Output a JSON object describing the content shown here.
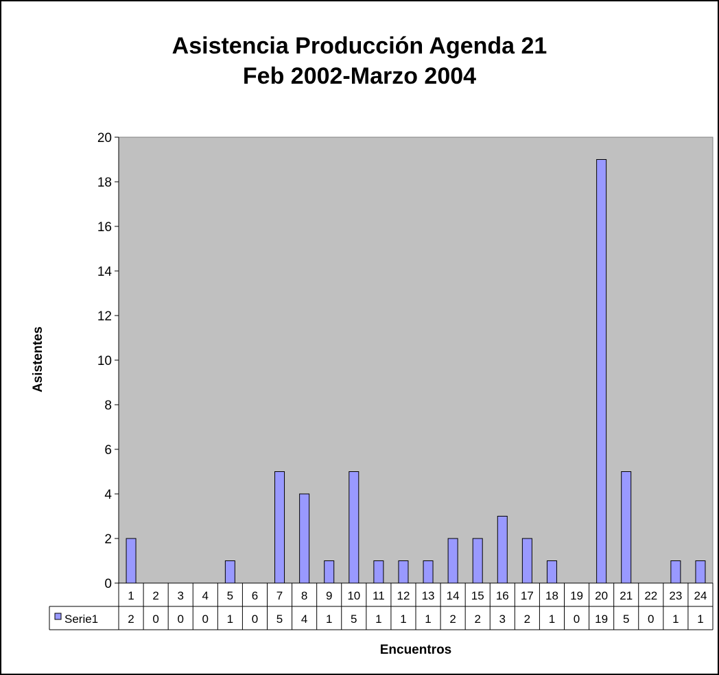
{
  "chart_data": {
    "type": "bar",
    "title_line1": "Asistencia Producción Agenda 21",
    "title_line2": "Feb 2002-Marzo 2004",
    "xlabel": "Encuentros",
    "ylabel": "Asistentes",
    "ylim": [
      0,
      20
    ],
    "yticks": [
      "0",
      "2",
      "4",
      "6",
      "8",
      "10",
      "12",
      "14",
      "16",
      "18",
      "20"
    ],
    "grid": false,
    "categories": [
      "1",
      "2",
      "3",
      "4",
      "5",
      "6",
      "7",
      "8",
      "9",
      "10",
      "11",
      "12",
      "13",
      "14",
      "15",
      "16",
      "17",
      "18",
      "19",
      "20",
      "21",
      "22",
      "23",
      "24"
    ],
    "series": [
      {
        "name": "Serie1",
        "color": "#9999ff",
        "values": [
          2,
          0,
          0,
          0,
          1,
          0,
          5,
          4,
          1,
          5,
          1,
          1,
          1,
          2,
          2,
          3,
          2,
          1,
          0,
          19,
          5,
          0,
          1,
          1
        ]
      }
    ],
    "data_table": true,
    "plot_background": "#c0c0c0"
  }
}
